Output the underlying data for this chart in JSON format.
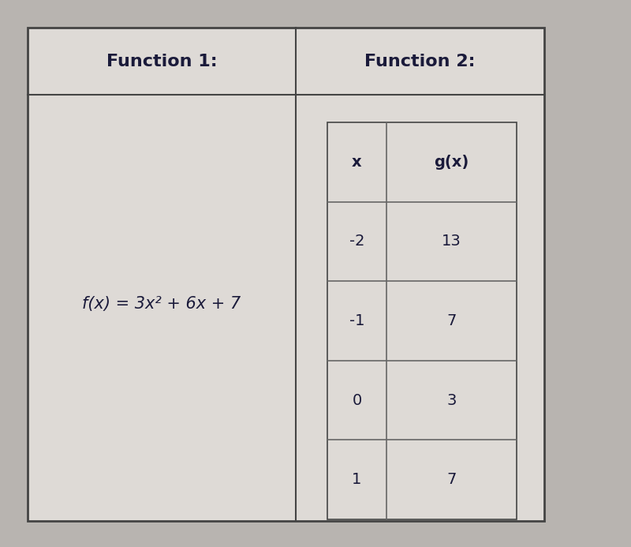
{
  "col1_header": "Function 1:",
  "col2_header": "Function 2:",
  "function1_formula": "f(x) = 3x² + 6x + 7",
  "function2_table_headers": [
    "x",
    "g(x)"
  ],
  "function2_rows": [
    [
      "-2",
      "13"
    ],
    [
      "-1",
      "7"
    ],
    [
      "0",
      "3"
    ],
    [
      "1",
      "7"
    ]
  ],
  "bg_color": "#b8b4b0",
  "table_bg": "#dedad6",
  "header_font_size": 16,
  "formula_font_size": 15,
  "table_font_size": 14,
  "text_color": "#1a1a3a",
  "border_color": "#444444",
  "inner_border_color": "#666666"
}
